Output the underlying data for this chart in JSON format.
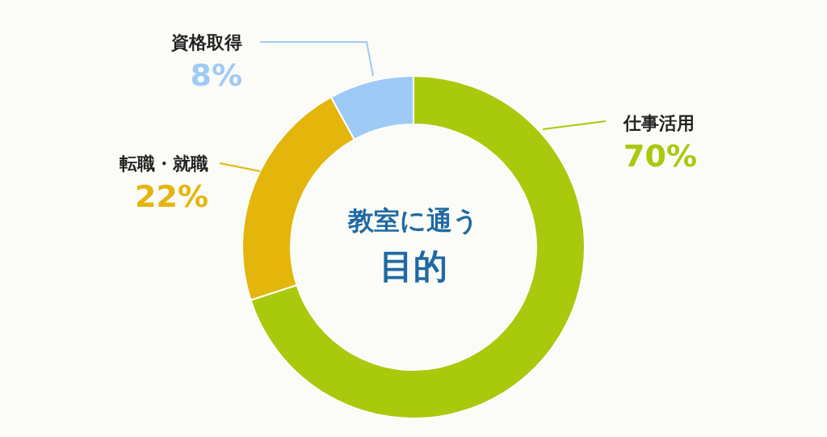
{
  "chart_data": {
    "type": "donut",
    "title": "教室に通う",
    "subtitle": "目的",
    "categories": [
      "仕事活用",
      "転職・就職",
      "資格取得"
    ],
    "values": [
      70,
      22,
      8
    ],
    "colors": [
      "#a9c90c",
      "#e4b60c",
      "#9dcbf6"
    ],
    "value_labels": [
      "70%",
      "22%",
      "8%"
    ]
  }
}
